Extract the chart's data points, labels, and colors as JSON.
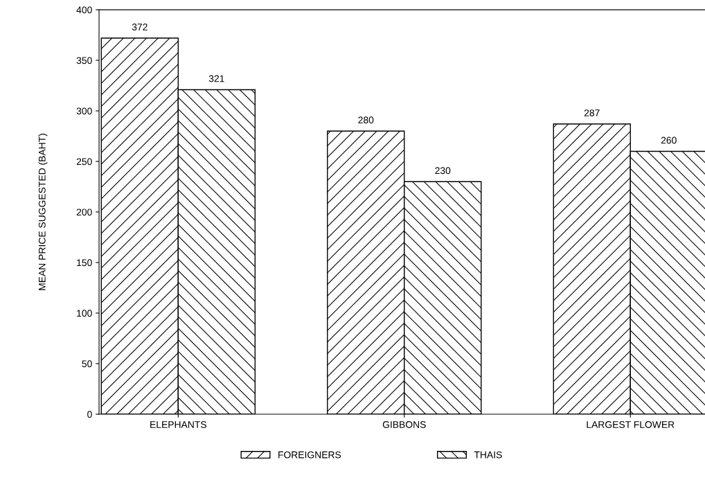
{
  "chart_data": {
    "type": "bar",
    "ylabel": "MEAN PRICE SUGGESTED (BAHT)",
    "categories": [
      "ELEPHANTS",
      "GIBBONS",
      "LARGEST FLOWER"
    ],
    "series": [
      {
        "name": "FOREIGNERS",
        "color": "#000000",
        "values": [
          372,
          280,
          287
        ]
      },
      {
        "name": "THAIS",
        "color": "#000000",
        "values": [
          321,
          230,
          260
        ]
      }
    ],
    "ylim": [
      0,
      400
    ],
    "yticks": [
      0,
      50,
      100,
      150,
      200,
      250,
      300,
      350,
      400
    ],
    "data_labels": true,
    "legend": "bottom"
  }
}
